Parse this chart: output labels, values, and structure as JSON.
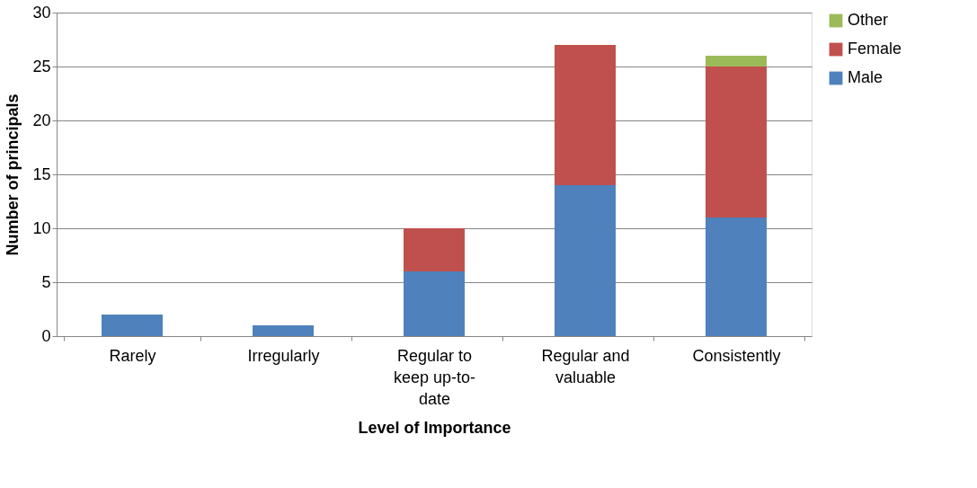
{
  "chart_data": {
    "type": "bar",
    "stacked": true,
    "xlabel": "Level of Importance",
    "ylabel": "Number of principals",
    "categories": [
      "Rarely",
      "Irregularly",
      "Regular to keep up-to-date",
      "Regular and valuable",
      "Consistently"
    ],
    "series": [
      {
        "name": "Male",
        "color": "#4f81bd",
        "values": [
          2,
          1,
          6,
          14,
          11
        ]
      },
      {
        "name": "Female",
        "color": "#c0504d",
        "values": [
          null,
          null,
          4,
          13,
          14
        ]
      },
      {
        "name": "Other",
        "color": "#9bbb59",
        "values": [
          null,
          null,
          null,
          null,
          1
        ]
      }
    ],
    "ylim": [
      0,
      30
    ],
    "yticks": [
      0,
      5,
      10,
      15,
      20,
      25,
      30
    ],
    "grid": "y",
    "legend": "right"
  }
}
